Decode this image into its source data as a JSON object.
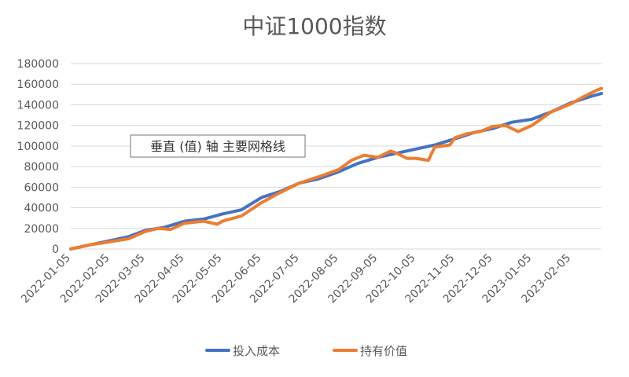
{
  "chart_data": {
    "type": "line",
    "title": "中证1000指数",
    "xlabel": "",
    "ylabel": "",
    "ylim": [
      0,
      180000
    ],
    "yticks": [
      0,
      20000,
      40000,
      60000,
      80000,
      100000,
      120000,
      140000,
      160000,
      180000
    ],
    "ytick_labels": [
      "0",
      "20000",
      "40000",
      "60000",
      "80000",
      "100000",
      "120000",
      "140000",
      "160000",
      "180000"
    ],
    "x_tick_labels": [
      "2022-01-05",
      "2022-02-05",
      "2022-03-05",
      "2022-04-05",
      "2022-05-05",
      "2022-06-05",
      "2022-07-05",
      "2022-08-05",
      "2022-09-05",
      "2022-10-05",
      "2022-11-05",
      "2022-12-05",
      "2023-01-05",
      "2023-02-05"
    ],
    "grid": true,
    "legend_position": "bottom",
    "tooltip": "垂直 (值) 轴 主要网格线",
    "series": [
      {
        "name": "投入成本",
        "color": "#4472C4",
        "points": [
          [
            "2022-01-05",
            0
          ],
          [
            "2022-01-20",
            4000
          ],
          [
            "2022-02-05",
            8000
          ],
          [
            "2022-02-20",
            12000
          ],
          [
            "2022-03-05",
            18000
          ],
          [
            "2022-03-20",
            21000
          ],
          [
            "2022-04-05",
            27000
          ],
          [
            "2022-04-20",
            29000
          ],
          [
            "2022-05-05",
            34000
          ],
          [
            "2022-05-20",
            38000
          ],
          [
            "2022-06-05",
            50000
          ],
          [
            "2022-06-20",
            56000
          ],
          [
            "2022-07-05",
            64000
          ],
          [
            "2022-07-20",
            68000
          ],
          [
            "2022-08-05",
            75000
          ],
          [
            "2022-08-20",
            83000
          ],
          [
            "2022-09-05",
            89000
          ],
          [
            "2022-09-20",
            93000
          ],
          [
            "2022-10-05",
            97000
          ],
          [
            "2022-10-20",
            101000
          ],
          [
            "2022-11-05",
            107000
          ],
          [
            "2022-11-20",
            113000
          ],
          [
            "2022-12-05",
            117000
          ],
          [
            "2022-12-20",
            123000
          ],
          [
            "2023-01-05",
            126000
          ],
          [
            "2023-01-20",
            133000
          ],
          [
            "2023-02-05",
            142000
          ],
          [
            "2023-02-20",
            148000
          ],
          [
            "2023-03-01",
            151000
          ]
        ]
      },
      {
        "name": "持有价值",
        "color": "#ED7D31",
        "points": [
          [
            "2022-01-05",
            0
          ],
          [
            "2022-01-20",
            4000
          ],
          [
            "2022-02-05",
            7000
          ],
          [
            "2022-02-20",
            10000
          ],
          [
            "2022-03-05",
            17000
          ],
          [
            "2022-03-15",
            20000
          ],
          [
            "2022-03-25",
            19000
          ],
          [
            "2022-04-05",
            25000
          ],
          [
            "2022-04-20",
            27000
          ],
          [
            "2022-05-01",
            24000
          ],
          [
            "2022-05-05",
            27000
          ],
          [
            "2022-05-20",
            32000
          ],
          [
            "2022-06-05",
            45000
          ],
          [
            "2022-06-20",
            55000
          ],
          [
            "2022-07-05",
            64000
          ],
          [
            "2022-07-20",
            70000
          ],
          [
            "2022-08-05",
            77000
          ],
          [
            "2022-08-15",
            86000
          ],
          [
            "2022-08-25",
            91000
          ],
          [
            "2022-09-05",
            89000
          ],
          [
            "2022-09-15",
            95000
          ],
          [
            "2022-09-20",
            93000
          ],
          [
            "2022-09-28",
            88000
          ],
          [
            "2022-10-05",
            88000
          ],
          [
            "2022-10-15",
            86000
          ],
          [
            "2022-10-20",
            99000
          ],
          [
            "2022-11-01",
            101000
          ],
          [
            "2022-11-05",
            108000
          ],
          [
            "2022-11-15",
            112000
          ],
          [
            "2022-11-25",
            114000
          ],
          [
            "2022-12-05",
            119000
          ],
          [
            "2022-12-15",
            120000
          ],
          [
            "2022-12-25",
            114000
          ],
          [
            "2023-01-05",
            120000
          ],
          [
            "2023-01-20",
            133000
          ],
          [
            "2023-02-05",
            141000
          ],
          [
            "2023-02-15",
            148000
          ],
          [
            "2023-02-25",
            154000
          ],
          [
            "2023-03-01",
            156000
          ]
        ]
      }
    ]
  }
}
